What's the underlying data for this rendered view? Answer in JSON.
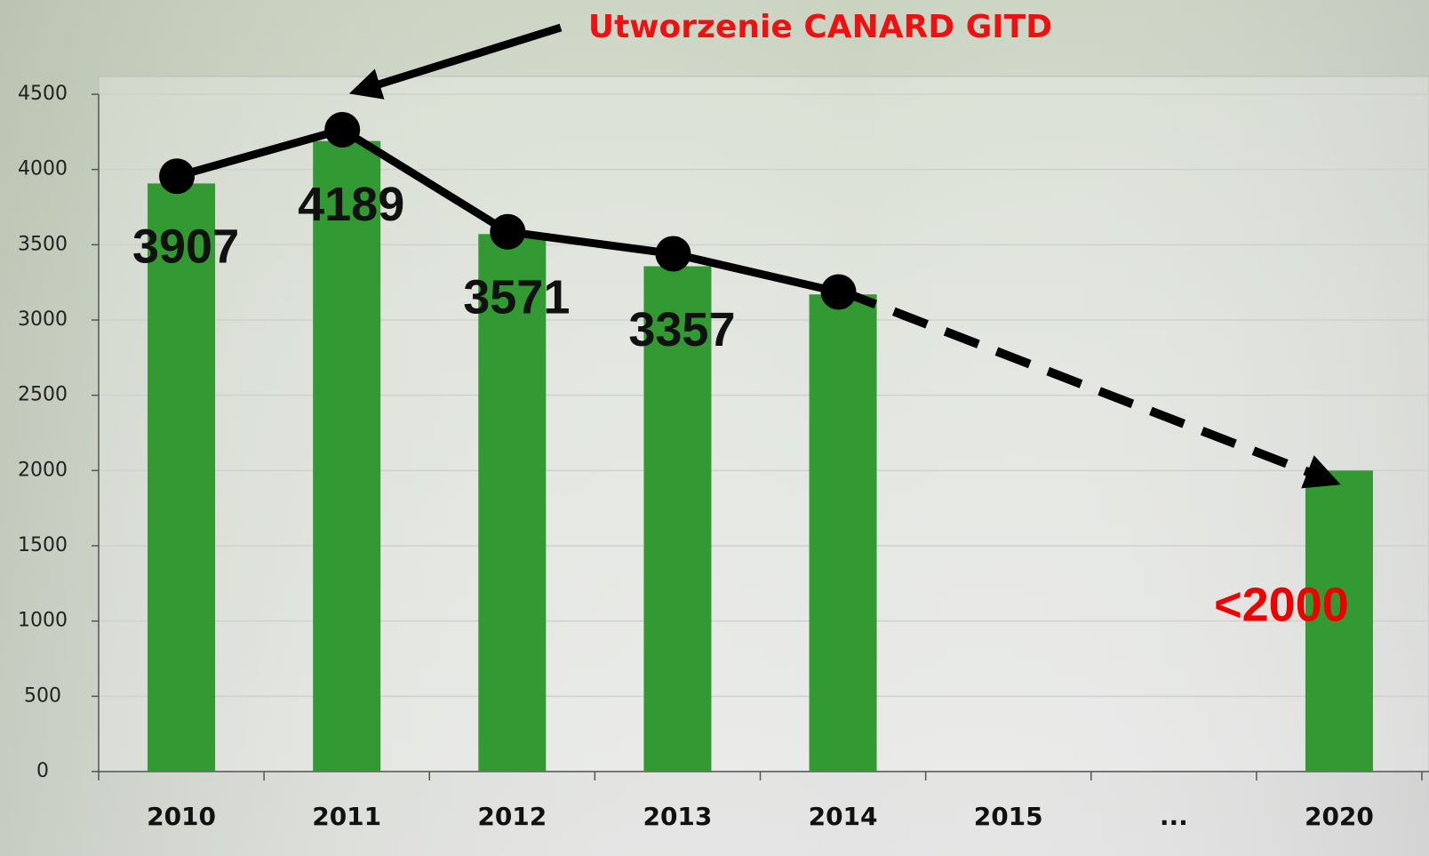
{
  "chart_data": {
    "type": "bar",
    "annotation": "Utworzenie CANARD GITD",
    "categories": [
      "2010",
      "2011",
      "2012",
      "2013",
      "2014",
      "2015",
      "...",
      "2020"
    ],
    "series": [
      {
        "type": "bar",
        "color": "#339933",
        "values": [
          3907,
          4189,
          3571,
          3357,
          3170,
          null,
          null,
          2000
        ],
        "value_labels": [
          "3907",
          "4189",
          "3571",
          "3357",
          null,
          null,
          null,
          "<2000"
        ],
        "value_label_colors": [
          "#111111",
          "#111111",
          "#111111",
          "#111111",
          null,
          null,
          null,
          "#ee0000"
        ]
      },
      {
        "type": "line",
        "color": "#000000",
        "values": [
          3955,
          4264,
          3586,
          3440,
          3186,
          null,
          null,
          null
        ]
      }
    ],
    "ylim": [
      0,
      4500
    ],
    "yticks": [
      0,
      500,
      1000,
      1500,
      2000,
      2500,
      3000,
      3500,
      4000,
      4500
    ],
    "grid": true
  }
}
